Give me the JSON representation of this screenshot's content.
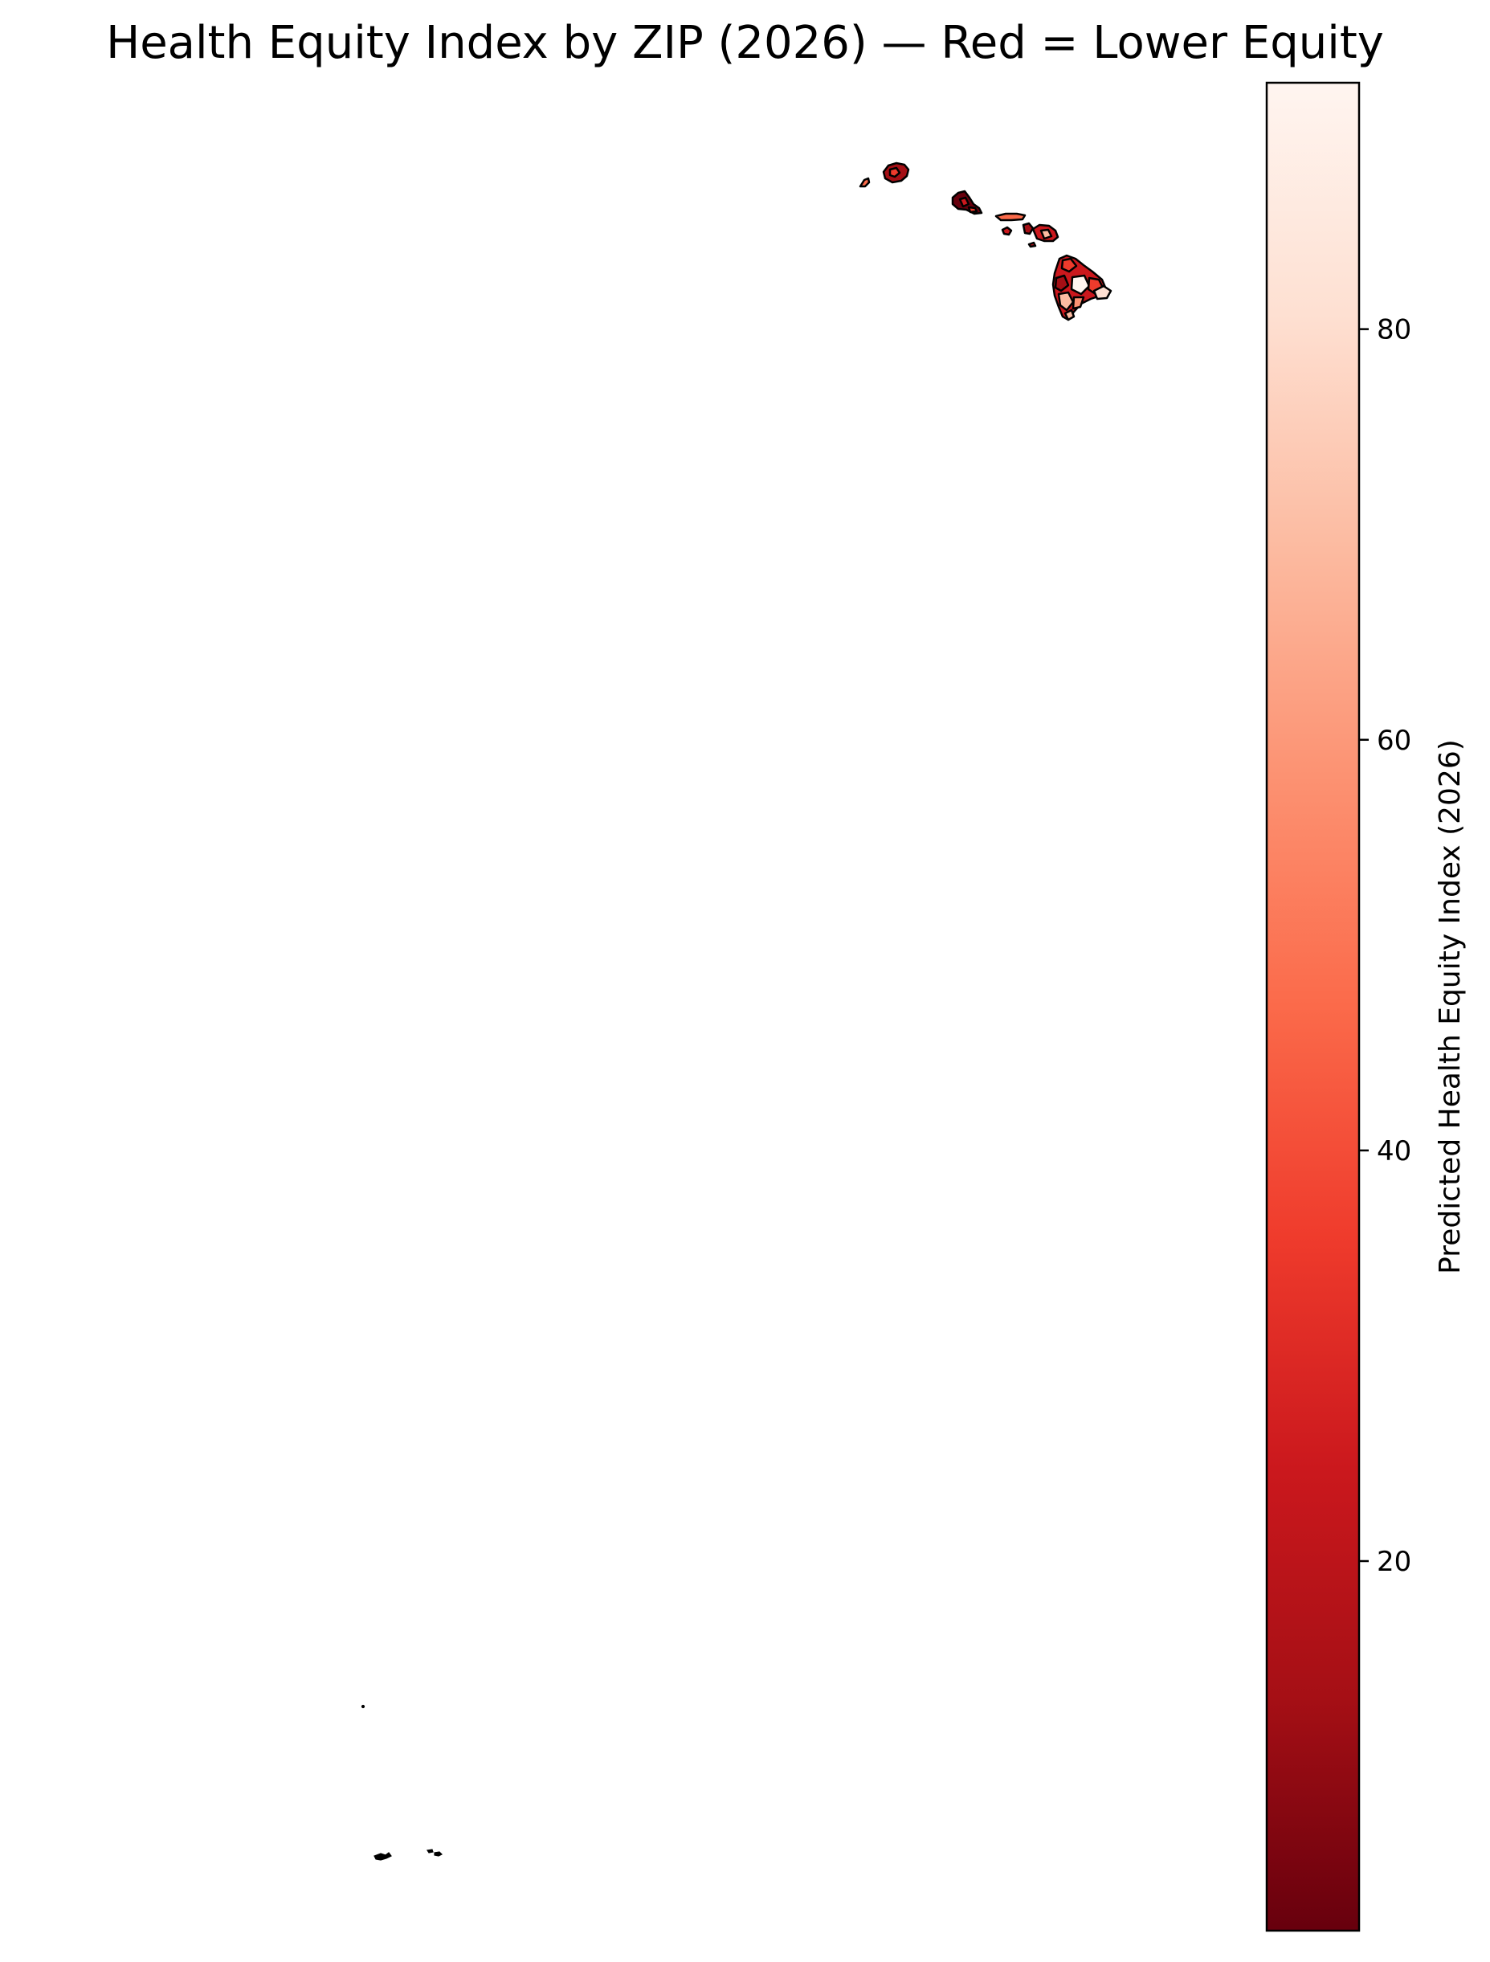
{
  "title": "Health Equity Index by ZIP (2026) — Red = Lower Equity",
  "map": {
    "region": "Hawaii ZIP code areas",
    "outline_color": "#000000",
    "colormap": "Reds (reversed): low = dark red, high = near white"
  },
  "colorbar": {
    "label": "Predicted Health Equity Index (2026)",
    "range": [
      2,
      92
    ],
    "ticks": [
      20,
      40,
      60,
      80
    ],
    "tick_labels": [
      "20",
      "40",
      "60",
      "80"
    ],
    "colors": {
      "low": "#67000d",
      "q1": "#a50f15",
      "q2": "#cb181d",
      "q3": "#ef3b2c",
      "q4": "#fb6a4a",
      "q5": "#fc9272",
      "q6": "#fcbba1",
      "q7": "#fee0d2",
      "high": "#fff5f0"
    }
  }
}
